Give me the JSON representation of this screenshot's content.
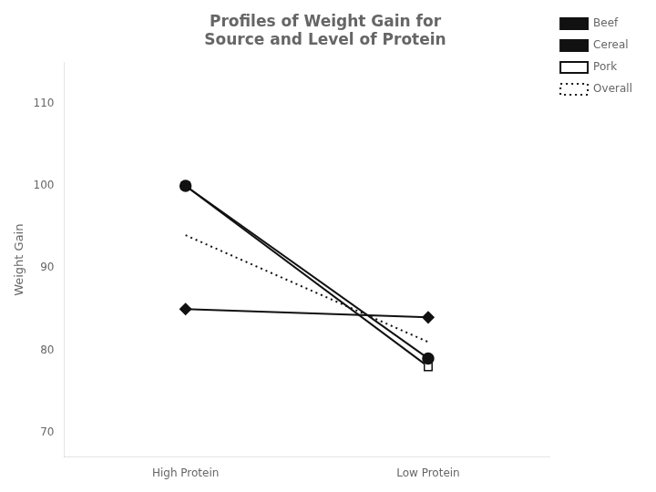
{
  "chart_data": {
    "type": "line",
    "title": "Profiles of Weight Gain for\nSource and Level of Protein",
    "categories": [
      "High Protein",
      "Low Protein"
    ],
    "y_label": "Weight Gain",
    "series": [
      {
        "name": "Beef",
        "values": [
          100,
          79
        ],
        "color": "#111111",
        "marker": "circle",
        "line_style": "solid"
      },
      {
        "name": "Cereal",
        "values": [
          85,
          84
        ],
        "color": "#111111",
        "marker": "diamond",
        "line_style": "solid"
      },
      {
        "name": "Pork",
        "values": [
          100,
          78
        ],
        "color": "#111111",
        "marker": "open_square",
        "line_style": "solid"
      },
      {
        "name": "Overall",
        "values": [
          94,
          81
        ],
        "color": "#111111",
        "marker": "none",
        "line_style": "dotted"
      }
    ],
    "ylim": [
      67,
      115
    ],
    "yticks": [
      70,
      80,
      90,
      100,
      110
    ],
    "grid": false,
    "legend": "upper right"
  }
}
